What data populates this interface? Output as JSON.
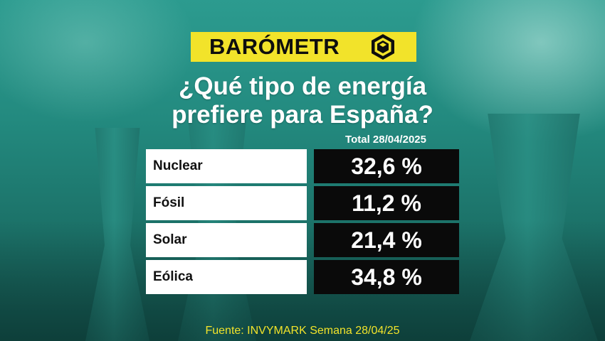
{
  "brand": {
    "name": "BARÓMETR",
    "logo_icon": "hexagon-cube-icon"
  },
  "title": {
    "line1": "¿Qué tipo de energía",
    "line2": "prefiere para España?"
  },
  "column_header": "Total 28/04/2025",
  "rows": [
    {
      "label": "Nuclear",
      "value_text": "32,6 %"
    },
    {
      "label": "Fósil",
      "value_text": "11,2 %"
    },
    {
      "label": "Solar",
      "value_text": "21,4 %"
    },
    {
      "label": "Eólica",
      "value_text": "34,8 %"
    }
  ],
  "source": "Fuente: INVYMARK Semana 28/04/25",
  "colors": {
    "accent_yellow": "#f2e32a",
    "background_teal": "#1f7c74",
    "value_box": "#0a0a0a",
    "label_box": "#ffffff"
  },
  "chart_data": {
    "type": "table",
    "title": "¿Qué tipo de energía prefiere para España?",
    "column": "Total 28/04/2025",
    "categories": [
      "Nuclear",
      "Fósil",
      "Solar",
      "Eólica"
    ],
    "values": [
      32.6,
      11.2,
      21.4,
      34.8
    ],
    "unit": "%"
  }
}
